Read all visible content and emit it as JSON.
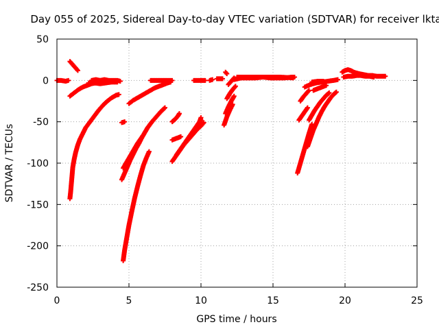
{
  "chart_data": {
    "type": "scatter",
    "title": "Day 055 of 2025, Sidereal Day-to-day VTEC variation (SDTVAR) for receiver lkta",
    "xlabel": "GPS time / hours",
    "ylabel": "SDTVAR / TECUs",
    "xlim": [
      0,
      25
    ],
    "ylim": [
      -250,
      50
    ],
    "xticks": [
      "0",
      "5",
      "10",
      "15",
      "20",
      "25"
    ],
    "yticks": [
      "50",
      "0",
      "-50",
      "-100",
      "-150",
      "-200",
      "-250"
    ],
    "grid": true,
    "marker": "plus",
    "color": "#ff0000",
    "series": [
      {
        "points": [
          [
            0.0,
            0
          ],
          [
            0.3,
            0
          ],
          [
            0.6,
            -1
          ],
          [
            0.8,
            0
          ]
        ]
      },
      {
        "points": [
          [
            0.9,
            23
          ],
          [
            1.05,
            20
          ],
          [
            1.2,
            17
          ],
          [
            1.35,
            14
          ],
          [
            1.45,
            12
          ]
        ]
      },
      {
        "points": [
          [
            0.9,
            -19
          ],
          [
            1.2,
            -15
          ],
          [
            1.5,
            -11
          ],
          [
            1.8,
            -8
          ],
          [
            2.1,
            -6
          ],
          [
            2.4,
            -4
          ],
          [
            2.7,
            -3
          ],
          [
            3.0,
            -3
          ]
        ]
      },
      {
        "points": [
          [
            2.4,
            0
          ],
          [
            2.7,
            1
          ],
          [
            3.0,
            0
          ],
          [
            3.3,
            1
          ],
          [
            3.6,
            0
          ],
          [
            3.9,
            0
          ],
          [
            4.2,
            0
          ],
          [
            4.4,
            -1
          ]
        ]
      },
      {
        "points": [
          [
            2.2,
            -3
          ],
          [
            2.6,
            -3
          ],
          [
            3.0,
            -4
          ],
          [
            3.4,
            -3
          ],
          [
            3.8,
            -2
          ],
          [
            4.2,
            -2
          ]
        ]
      },
      {
        "points": [
          [
            0.9,
            -143
          ],
          [
            0.95,
            -135
          ],
          [
            1.0,
            -125
          ],
          [
            1.05,
            -115
          ],
          [
            1.1,
            -105
          ],
          [
            1.2,
            -95
          ],
          [
            1.3,
            -87
          ],
          [
            1.45,
            -78
          ],
          [
            1.6,
            -71
          ],
          [
            1.8,
            -64
          ],
          [
            2.0,
            -57
          ],
          [
            2.3,
            -50
          ],
          [
            2.6,
            -43
          ],
          [
            2.9,
            -36
          ],
          [
            3.2,
            -30
          ],
          [
            3.5,
            -25
          ],
          [
            3.8,
            -21
          ],
          [
            4.1,
            -18
          ],
          [
            4.3,
            -17
          ]
        ]
      },
      {
        "points": [
          [
            4.6,
            -218
          ],
          [
            4.7,
            -205
          ],
          [
            4.85,
            -190
          ],
          [
            5.0,
            -175
          ],
          [
            5.2,
            -158
          ],
          [
            5.4,
            -142
          ],
          [
            5.6,
            -128
          ],
          [
            5.8,
            -115
          ],
          [
            6.0,
            -103
          ],
          [
            6.2,
            -94
          ],
          [
            6.4,
            -86
          ]
        ]
      },
      {
        "points": [
          [
            4.5,
            -120
          ],
          [
            4.7,
            -112
          ],
          [
            4.9,
            -104
          ],
          [
            5.1,
            -96
          ],
          [
            5.3,
            -89
          ],
          [
            5.5,
            -82
          ],
          [
            5.7,
            -76
          ],
          [
            5.9,
            -69
          ],
          [
            6.1,
            -63
          ],
          [
            6.3,
            -57
          ],
          [
            6.6,
            -50
          ],
          [
            6.9,
            -44
          ],
          [
            7.2,
            -38
          ],
          [
            7.5,
            -33
          ]
        ]
      },
      {
        "points": [
          [
            4.6,
            -106
          ],
          [
            4.8,
            -100
          ],
          [
            5.0,
            -94
          ],
          [
            5.2,
            -88
          ],
          [
            5.4,
            -82
          ],
          [
            5.6,
            -76
          ],
          [
            5.8,
            -71
          ],
          [
            6.0,
            -66
          ]
        ]
      },
      {
        "points": [
          [
            4.5,
            -51
          ],
          [
            4.7,
            -50
          ]
        ]
      },
      {
        "points": [
          [
            5.0,
            -28
          ],
          [
            5.3,
            -24
          ],
          [
            5.6,
            -21
          ],
          [
            5.9,
            -18
          ],
          [
            6.2,
            -15
          ],
          [
            6.5,
            -12
          ],
          [
            6.8,
            -9
          ],
          [
            7.1,
            -7
          ],
          [
            7.4,
            -5
          ],
          [
            7.7,
            -3
          ],
          [
            7.9,
            -2
          ]
        ]
      },
      {
        "points": [
          [
            6.5,
            0
          ],
          [
            6.9,
            0
          ],
          [
            7.3,
            0
          ],
          [
            7.7,
            0
          ],
          [
            8.0,
            0
          ]
        ]
      },
      {
        "points": [
          [
            8.0,
            -50
          ],
          [
            8.2,
            -47
          ],
          [
            8.4,
            -43
          ],
          [
            8.5,
            -40
          ]
        ]
      },
      {
        "points": [
          [
            8.0,
            -98
          ],
          [
            8.2,
            -93
          ],
          [
            8.4,
            -88
          ],
          [
            8.6,
            -83
          ],
          [
            8.8,
            -78
          ],
          [
            9.0,
            -73
          ],
          [
            9.2,
            -68
          ],
          [
            9.4,
            -63
          ],
          [
            9.6,
            -58
          ],
          [
            9.8,
            -53
          ],
          [
            10.0,
            -48
          ]
        ]
      },
      {
        "points": [
          [
            8.3,
            -90
          ],
          [
            8.5,
            -85
          ],
          [
            8.7,
            -80
          ],
          [
            8.9,
            -75
          ],
          [
            9.1,
            -70
          ],
          [
            9.3,
            -65
          ],
          [
            9.5,
            -60
          ],
          [
            9.7,
            -55
          ],
          [
            9.9,
            -50
          ],
          [
            10.0,
            -45
          ]
        ]
      },
      {
        "points": [
          [
            8.8,
            -78
          ],
          [
            9.0,
            -74
          ],
          [
            9.2,
            -70
          ],
          [
            9.4,
            -66
          ],
          [
            9.6,
            -62
          ],
          [
            9.8,
            -58
          ],
          [
            10.0,
            -55
          ],
          [
            10.2,
            -51
          ]
        ]
      },
      {
        "points": [
          [
            8.0,
            -72
          ],
          [
            8.3,
            -70
          ],
          [
            8.6,
            -68
          ]
        ]
      },
      {
        "points": [
          [
            9.5,
            0
          ],
          [
            9.8,
            0
          ],
          [
            10.1,
            0
          ],
          [
            10.3,
            0
          ]
        ]
      },
      {
        "points": [
          [
            10.6,
            0
          ],
          [
            10.8,
            1
          ]
        ]
      },
      {
        "points": [
          [
            11.1,
            2
          ],
          [
            11.3,
            2
          ],
          [
            11.5,
            2
          ]
        ]
      },
      {
        "points": [
          [
            11.7,
            10
          ],
          [
            11.8,
            8
          ]
        ]
      },
      {
        "points": [
          [
            11.6,
            -54
          ],
          [
            11.8,
            -44
          ],
          [
            12.0,
            -36
          ],
          [
            12.2,
            -29
          ]
        ]
      },
      {
        "points": [
          [
            11.7,
            -40
          ],
          [
            11.9,
            -32
          ],
          [
            12.1,
            -25
          ],
          [
            12.3,
            -19
          ]
        ]
      },
      {
        "points": [
          [
            11.8,
            -22
          ],
          [
            12.0,
            -16
          ],
          [
            12.2,
            -11
          ],
          [
            12.4,
            -7
          ]
        ]
      },
      {
        "points": [
          [
            11.9,
            -5
          ],
          [
            12.1,
            -1
          ],
          [
            12.3,
            3
          ]
        ]
      },
      {
        "points": [
          [
            12.3,
            1
          ],
          [
            12.8,
            3
          ],
          [
            13.3,
            3
          ],
          [
            13.8,
            3
          ],
          [
            14.3,
            4
          ],
          [
            14.8,
            3
          ],
          [
            15.3,
            3
          ],
          [
            15.8,
            3
          ],
          [
            16.3,
            4
          ],
          [
            16.5,
            4
          ]
        ]
      },
      {
        "points": [
          [
            12.5,
            4
          ],
          [
            13.5,
            4
          ],
          [
            14.5,
            4
          ],
          [
            15.5,
            4
          ],
          [
            16.4,
            3
          ]
        ]
      },
      {
        "points": [
          [
            17.2,
            -8
          ],
          [
            17.6,
            -5
          ],
          [
            18.0,
            -3
          ],
          [
            18.4,
            -2
          ],
          [
            18.8,
            -1
          ],
          [
            19.2,
            0
          ],
          [
            19.5,
            1
          ]
        ]
      },
      {
        "points": [
          [
            17.7,
            -2
          ],
          [
            18.1,
            -1
          ],
          [
            18.5,
            -1
          ]
        ]
      },
      {
        "points": [
          [
            16.7,
            -112
          ],
          [
            16.9,
            -100
          ],
          [
            17.1,
            -88
          ],
          [
            17.3,
            -76
          ],
          [
            17.5,
            -64
          ],
          [
            17.7,
            -53
          ]
        ]
      },
      {
        "points": [
          [
            16.8,
            -48
          ],
          [
            17.0,
            -43
          ],
          [
            17.2,
            -38
          ],
          [
            17.4,
            -33
          ]
        ]
      },
      {
        "points": [
          [
            16.9,
            -25
          ],
          [
            17.1,
            -20
          ],
          [
            17.3,
            -16
          ],
          [
            17.5,
            -12
          ]
        ]
      },
      {
        "points": [
          [
            17.4,
            -80
          ],
          [
            17.6,
            -70
          ],
          [
            17.8,
            -60
          ],
          [
            18.0,
            -52
          ],
          [
            18.2,
            -44
          ],
          [
            18.4,
            -37
          ],
          [
            18.6,
            -31
          ],
          [
            18.8,
            -26
          ],
          [
            19.0,
            -21
          ],
          [
            19.2,
            -17
          ],
          [
            19.4,
            -14
          ]
        ]
      },
      {
        "points": [
          [
            17.5,
            -48
          ],
          [
            17.7,
            -42
          ],
          [
            17.9,
            -36
          ],
          [
            18.1,
            -31
          ],
          [
            18.3,
            -26
          ],
          [
            18.5,
            -22
          ],
          [
            18.7,
            -18
          ],
          [
            18.9,
            -15
          ]
        ]
      },
      {
        "points": [
          [
            17.8,
            -12
          ],
          [
            18.1,
            -10
          ],
          [
            18.4,
            -8
          ],
          [
            18.7,
            -6
          ]
        ]
      },
      {
        "points": [
          [
            19.8,
            10
          ],
          [
            20.0,
            12
          ],
          [
            20.2,
            13
          ],
          [
            20.4,
            12
          ],
          [
            20.6,
            10
          ],
          [
            20.8,
            9
          ],
          [
            21.0,
            8
          ],
          [
            21.3,
            7
          ],
          [
            21.6,
            6
          ],
          [
            21.9,
            6
          ],
          [
            22.2,
            5
          ],
          [
            22.5,
            5
          ],
          [
            22.8,
            5
          ]
        ]
      },
      {
        "points": [
          [
            19.9,
            4
          ],
          [
            20.2,
            5
          ],
          [
            20.5,
            5
          ],
          [
            20.8,
            6
          ],
          [
            21.1,
            6
          ],
          [
            21.4,
            5
          ],
          [
            21.7,
            5
          ],
          [
            22.0,
            4
          ]
        ]
      }
    ]
  }
}
